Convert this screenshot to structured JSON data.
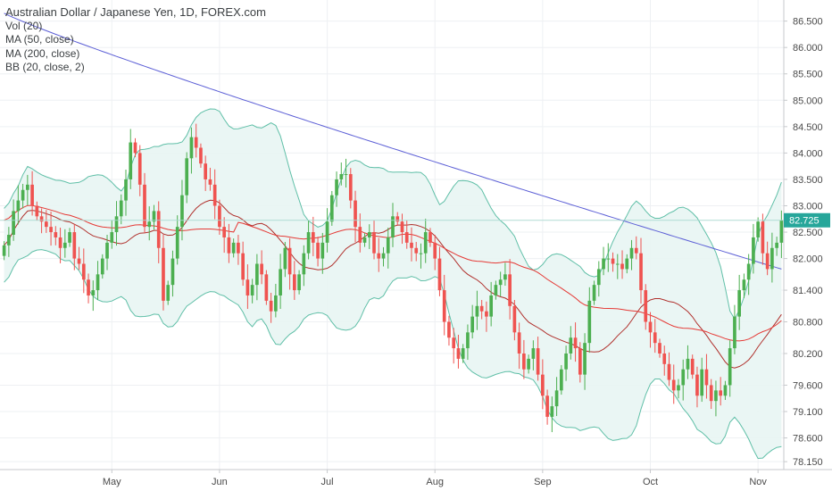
{
  "legend": {
    "title": "Australian Dollar / Japanese Yen, 1D, FOREX.com",
    "vol": "Vol (20)",
    "ma50": "MA (50, close)",
    "ma200": "MA (200, close)",
    "bb": "BB (20, close, 2)"
  },
  "colors": {
    "up": "#26a69a",
    "up_candle": "#4caf50",
    "down": "#ef5350",
    "ma50": "#e53935",
    "ma200": "#5c5fd6",
    "bb_band": "#5fbfa7",
    "bb_mid": "#b0302c",
    "bb_fill": "#e8f5f3",
    "price_tag": "#26a69a",
    "axis_text": "#4a4a4a",
    "grid": "#eef0f3"
  },
  "chart_data": {
    "type": "candlestick",
    "symbol": "Australian Dollar / Japanese Yen",
    "interval": "1D",
    "source": "FOREX.com",
    "y_axis": {
      "position": "right",
      "ylim": [
        78.0,
        86.9
      ],
      "ticks": [
        86.5,
        86.0,
        85.5,
        85.0,
        84.5,
        84.0,
        83.5,
        83.0,
        82.5,
        82.0,
        81.4,
        80.8,
        80.2,
        79.6,
        79.1,
        78.6,
        78.15
      ],
      "tick_labels": [
        "86.500",
        "86.000",
        "85.500",
        "85.000",
        "84.500",
        "84.000",
        "83.500",
        "83.000",
        "82.500",
        "82.000",
        "81.400",
        "80.800",
        "80.200",
        "79.600",
        "79.100",
        "78.600",
        "78.150"
      ]
    },
    "x_axis": {
      "labels": [
        "May",
        "Jun",
        "Jul",
        "Aug",
        "Sep",
        "Oct",
        "Nov"
      ],
      "label_positions": [
        23,
        46,
        69,
        92,
        115,
        138,
        161
      ]
    },
    "grid": true,
    "last_price": "82.725",
    "close": [
      82.25,
      82.45,
      82.9,
      83.1,
      83.3,
      83.4,
      83.0,
      82.8,
      82.7,
      82.6,
      82.5,
      82.4,
      82.2,
      82.3,
      82.5,
      82.0,
      81.9,
      81.6,
      81.3,
      81.4,
      81.7,
      82.0,
      82.3,
      82.5,
      82.8,
      83.1,
      83.5,
      84.2,
      84.0,
      83.4,
      82.6,
      82.7,
      82.9,
      82.2,
      81.2,
      81.5,
      82.0,
      82.6,
      83.2,
      83.9,
      84.3,
      84.1,
      83.8,
      83.5,
      83.4,
      83.0,
      82.6,
      82.4,
      82.1,
      82.3,
      82.1,
      81.6,
      81.3,
      81.5,
      81.9,
      81.7,
      81.2,
      81.0,
      81.3,
      81.8,
      82.2,
      81.7,
      81.4,
      81.7,
      82.1,
      82.5,
      82.3,
      82.0,
      82.3,
      82.7,
      83.2,
      83.5,
      83.6,
      83.6,
      83.1,
      82.6,
      82.3,
      82.4,
      82.5,
      82.1,
      82.0,
      82.1,
      82.4,
      82.8,
      82.7,
      82.5,
      82.3,
      82.2,
      82.1,
      82.1,
      82.5,
      82.3,
      82.0,
      81.4,
      80.8,
      80.5,
      80.3,
      80.1,
      80.3,
      80.6,
      80.9,
      81.1,
      81.0,
      80.9,
      81.3,
      81.5,
      81.6,
      81.7,
      81.1,
      80.6,
      80.2,
      79.9,
      80.1,
      80.3,
      79.8,
      79.4,
      79.0,
      79.2,
      79.5,
      79.9,
      80.2,
      80.5,
      80.3,
      79.8,
      80.4,
      81.2,
      81.5,
      81.8,
      82.0,
      82.0,
      81.9,
      81.9,
      81.8,
      82.0,
      82.2,
      82.1,
      81.4,
      80.8,
      80.6,
      80.4,
      80.2,
      80.0,
      79.7,
      79.5,
      79.6,
      79.9,
      80.1,
      79.8,
      79.4,
      79.9,
      79.6,
      79.3,
      79.5,
      79.4,
      79.6,
      80.3,
      80.9,
      81.4,
      81.6,
      81.9,
      82.4,
      82.7,
      82.1,
      81.8,
      82.2,
      82.3,
      82.725
    ]
  }
}
